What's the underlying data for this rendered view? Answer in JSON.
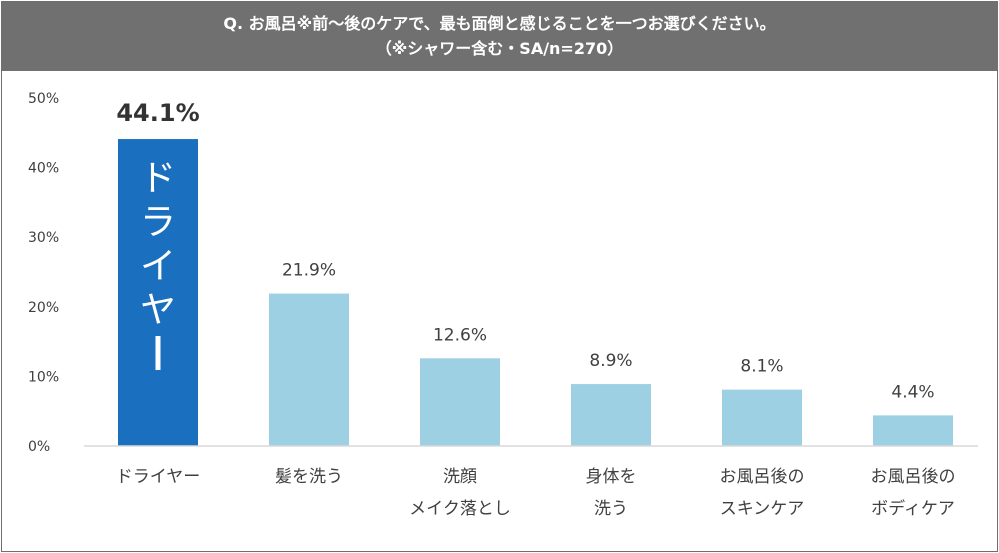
{
  "header": {
    "title_line1": "Q. お風呂※前〜後のケアで、最も面倒と感じることを一つお選びください。",
    "title_line2": "（※シャワー含む・SA/n=270）"
  },
  "chart_data": {
    "type": "bar",
    "title": "Q. お風呂※前〜後のケアで、最も面倒と感じることを一つお選びください。（※シャワー含む・SA/n=270）",
    "categories": [
      [
        "ドライヤー"
      ],
      [
        "髪を洗う"
      ],
      [
        "洗顔",
        "メイク落とし"
      ],
      [
        "身体を",
        "洗う"
      ],
      [
        "お風呂後の",
        "スキンケア"
      ],
      [
        "お風呂後の",
        "ボディケア"
      ]
    ],
    "values": [
      44.1,
      21.9,
      12.6,
      8.9,
      8.1,
      4.4
    ],
    "value_labels": [
      "44.1%",
      "21.9%",
      "12.6%",
      "8.9%",
      "8.1%",
      "4.4%"
    ],
    "ylim": [
      0,
      50
    ],
    "yticks": [
      "0%",
      "10%",
      "20%",
      "30%",
      "40%",
      "50%"
    ],
    "grid": false,
    "highlight_index": 0,
    "highlight_bar_text": "ドライヤー",
    "colors": {
      "highlight": "#1b6fbf",
      "bar": "#9dd0e3",
      "axis": "#d9d9d9",
      "text": "#404040",
      "header_bg": "#707070"
    }
  }
}
